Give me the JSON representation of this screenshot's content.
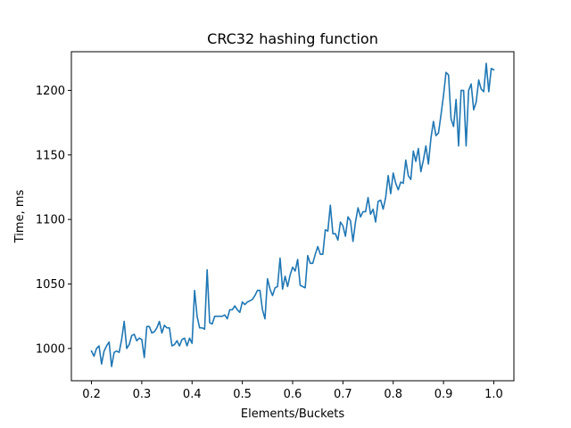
{
  "chart_data": {
    "type": "line",
    "title": "CRC32 hashing function",
    "xlabel": "Elements/Buckets",
    "ylabel": "Time, ms",
    "xlim": [
      0.16,
      1.04
    ],
    "ylim": [
      975,
      1230
    ],
    "xticks": [
      0.2,
      0.3,
      0.4,
      0.5,
      0.6,
      0.7,
      0.8,
      0.9,
      1.0
    ],
    "xtick_labels": [
      "0.2",
      "0.3",
      "0.4",
      "0.5",
      "0.6",
      "0.7",
      "0.8",
      "0.9",
      "1.0"
    ],
    "yticks": [
      1000,
      1050,
      1100,
      1150,
      1200
    ],
    "ytick_labels": [
      "1000",
      "1050",
      "1100",
      "1150",
      "1200"
    ],
    "grid": false,
    "color": "#1f77b4",
    "series": [
      {
        "x": [
          0.2,
          0.205,
          0.21,
          0.215,
          0.22,
          0.225,
          0.23,
          0.235,
          0.24,
          0.245,
          0.25,
          0.255,
          0.26,
          0.265,
          0.27,
          0.275,
          0.28,
          0.285,
          0.29,
          0.295,
          0.3,
          0.305,
          0.31,
          0.315,
          0.32,
          0.325,
          0.33,
          0.335,
          0.34,
          0.345,
          0.35,
          0.355,
          0.36,
          0.365,
          0.37,
          0.375,
          0.38,
          0.385,
          0.39,
          0.395,
          0.4,
          0.405,
          0.41,
          0.415,
          0.42,
          0.425,
          0.43,
          0.435,
          0.44,
          0.445,
          0.45,
          0.455,
          0.46,
          0.465,
          0.47,
          0.475,
          0.48,
          0.485,
          0.49,
          0.495,
          0.5,
          0.505,
          0.51,
          0.515,
          0.52,
          0.525,
          0.53,
          0.535,
          0.54,
          0.545,
          0.55,
          0.555,
          0.56,
          0.565,
          0.57,
          0.575,
          0.58,
          0.585,
          0.59,
          0.595,
          0.6,
          0.605,
          0.61,
          0.615,
          0.62,
          0.625,
          0.63,
          0.635,
          0.64,
          0.645,
          0.65,
          0.655,
          0.66,
          0.665,
          0.67,
          0.675,
          0.68,
          0.685,
          0.69,
          0.695,
          0.7,
          0.705,
          0.71,
          0.715,
          0.72,
          0.725,
          0.73,
          0.735,
          0.74,
          0.745,
          0.75,
          0.755,
          0.76,
          0.765,
          0.77,
          0.775,
          0.78,
          0.785,
          0.79,
          0.795,
          0.8,
          0.805,
          0.81,
          0.815,
          0.82,
          0.825,
          0.83,
          0.835,
          0.84,
          0.845,
          0.85,
          0.855,
          0.86,
          0.865,
          0.87,
          0.875,
          0.88,
          0.885,
          0.89,
          0.895,
          0.9,
          0.905,
          0.91,
          0.915,
          0.92,
          0.925,
          0.93,
          0.935,
          0.94,
          0.945,
          0.95,
          0.955,
          0.96,
          0.965,
          0.97,
          0.975,
          0.98,
          0.985,
          0.99,
          0.995,
          1.0
        ],
        "values": [
          998,
          994,
          1000,
          1002,
          988,
          998,
          1002,
          1005,
          986,
          997,
          998,
          997,
          1007,
          1021,
          1000,
          1003,
          1010,
          1011,
          1006,
          1008,
          1007,
          993,
          1017,
          1017,
          1012,
          1013,
          1016,
          1021,
          1012,
          1018,
          1016,
          1016,
          1002,
          1003,
          1006,
          1002,
          1007,
          1008,
          1002,
          1008,
          1004,
          1045,
          1025,
          1016,
          1016,
          1015,
          1061,
          1020,
          1019,
          1025,
          1025,
          1025,
          1025,
          1026,
          1023,
          1030,
          1030,
          1033,
          1030,
          1028,
          1036,
          1034,
          1036,
          1037,
          1038,
          1041,
          1045,
          1045,
          1030,
          1023,
          1054,
          1046,
          1041,
          1047,
          1048,
          1070,
          1046,
          1056,
          1048,
          1057,
          1063,
          1060,
          1069,
          1049,
          1048,
          1047,
          1072,
          1066,
          1066,
          1073,
          1079,
          1073,
          1073,
          1092,
          1091,
          1111,
          1089,
          1089,
          1084,
          1098,
          1095,
          1087,
          1102,
          1099,
          1083,
          1098,
          1109,
          1102,
          1106,
          1106,
          1117,
          1104,
          1108,
          1098,
          1114,
          1115,
          1108,
          1117,
          1134,
          1120,
          1136,
          1128,
          1123,
          1129,
          1128,
          1146,
          1134,
          1131,
          1153,
          1145,
          1155,
          1137,
          1146,
          1157,
          1143,
          1163,
          1176,
          1165,
          1167,
          1181,
          1196,
          1214,
          1212,
          1178,
          1172,
          1193,
          1157,
          1200,
          1200,
          1157,
          1200,
          1205,
          1185,
          1191,
          1208,
          1201,
          1199,
          1221,
          1199,
          1217,
          1216
        ]
      }
    ]
  }
}
